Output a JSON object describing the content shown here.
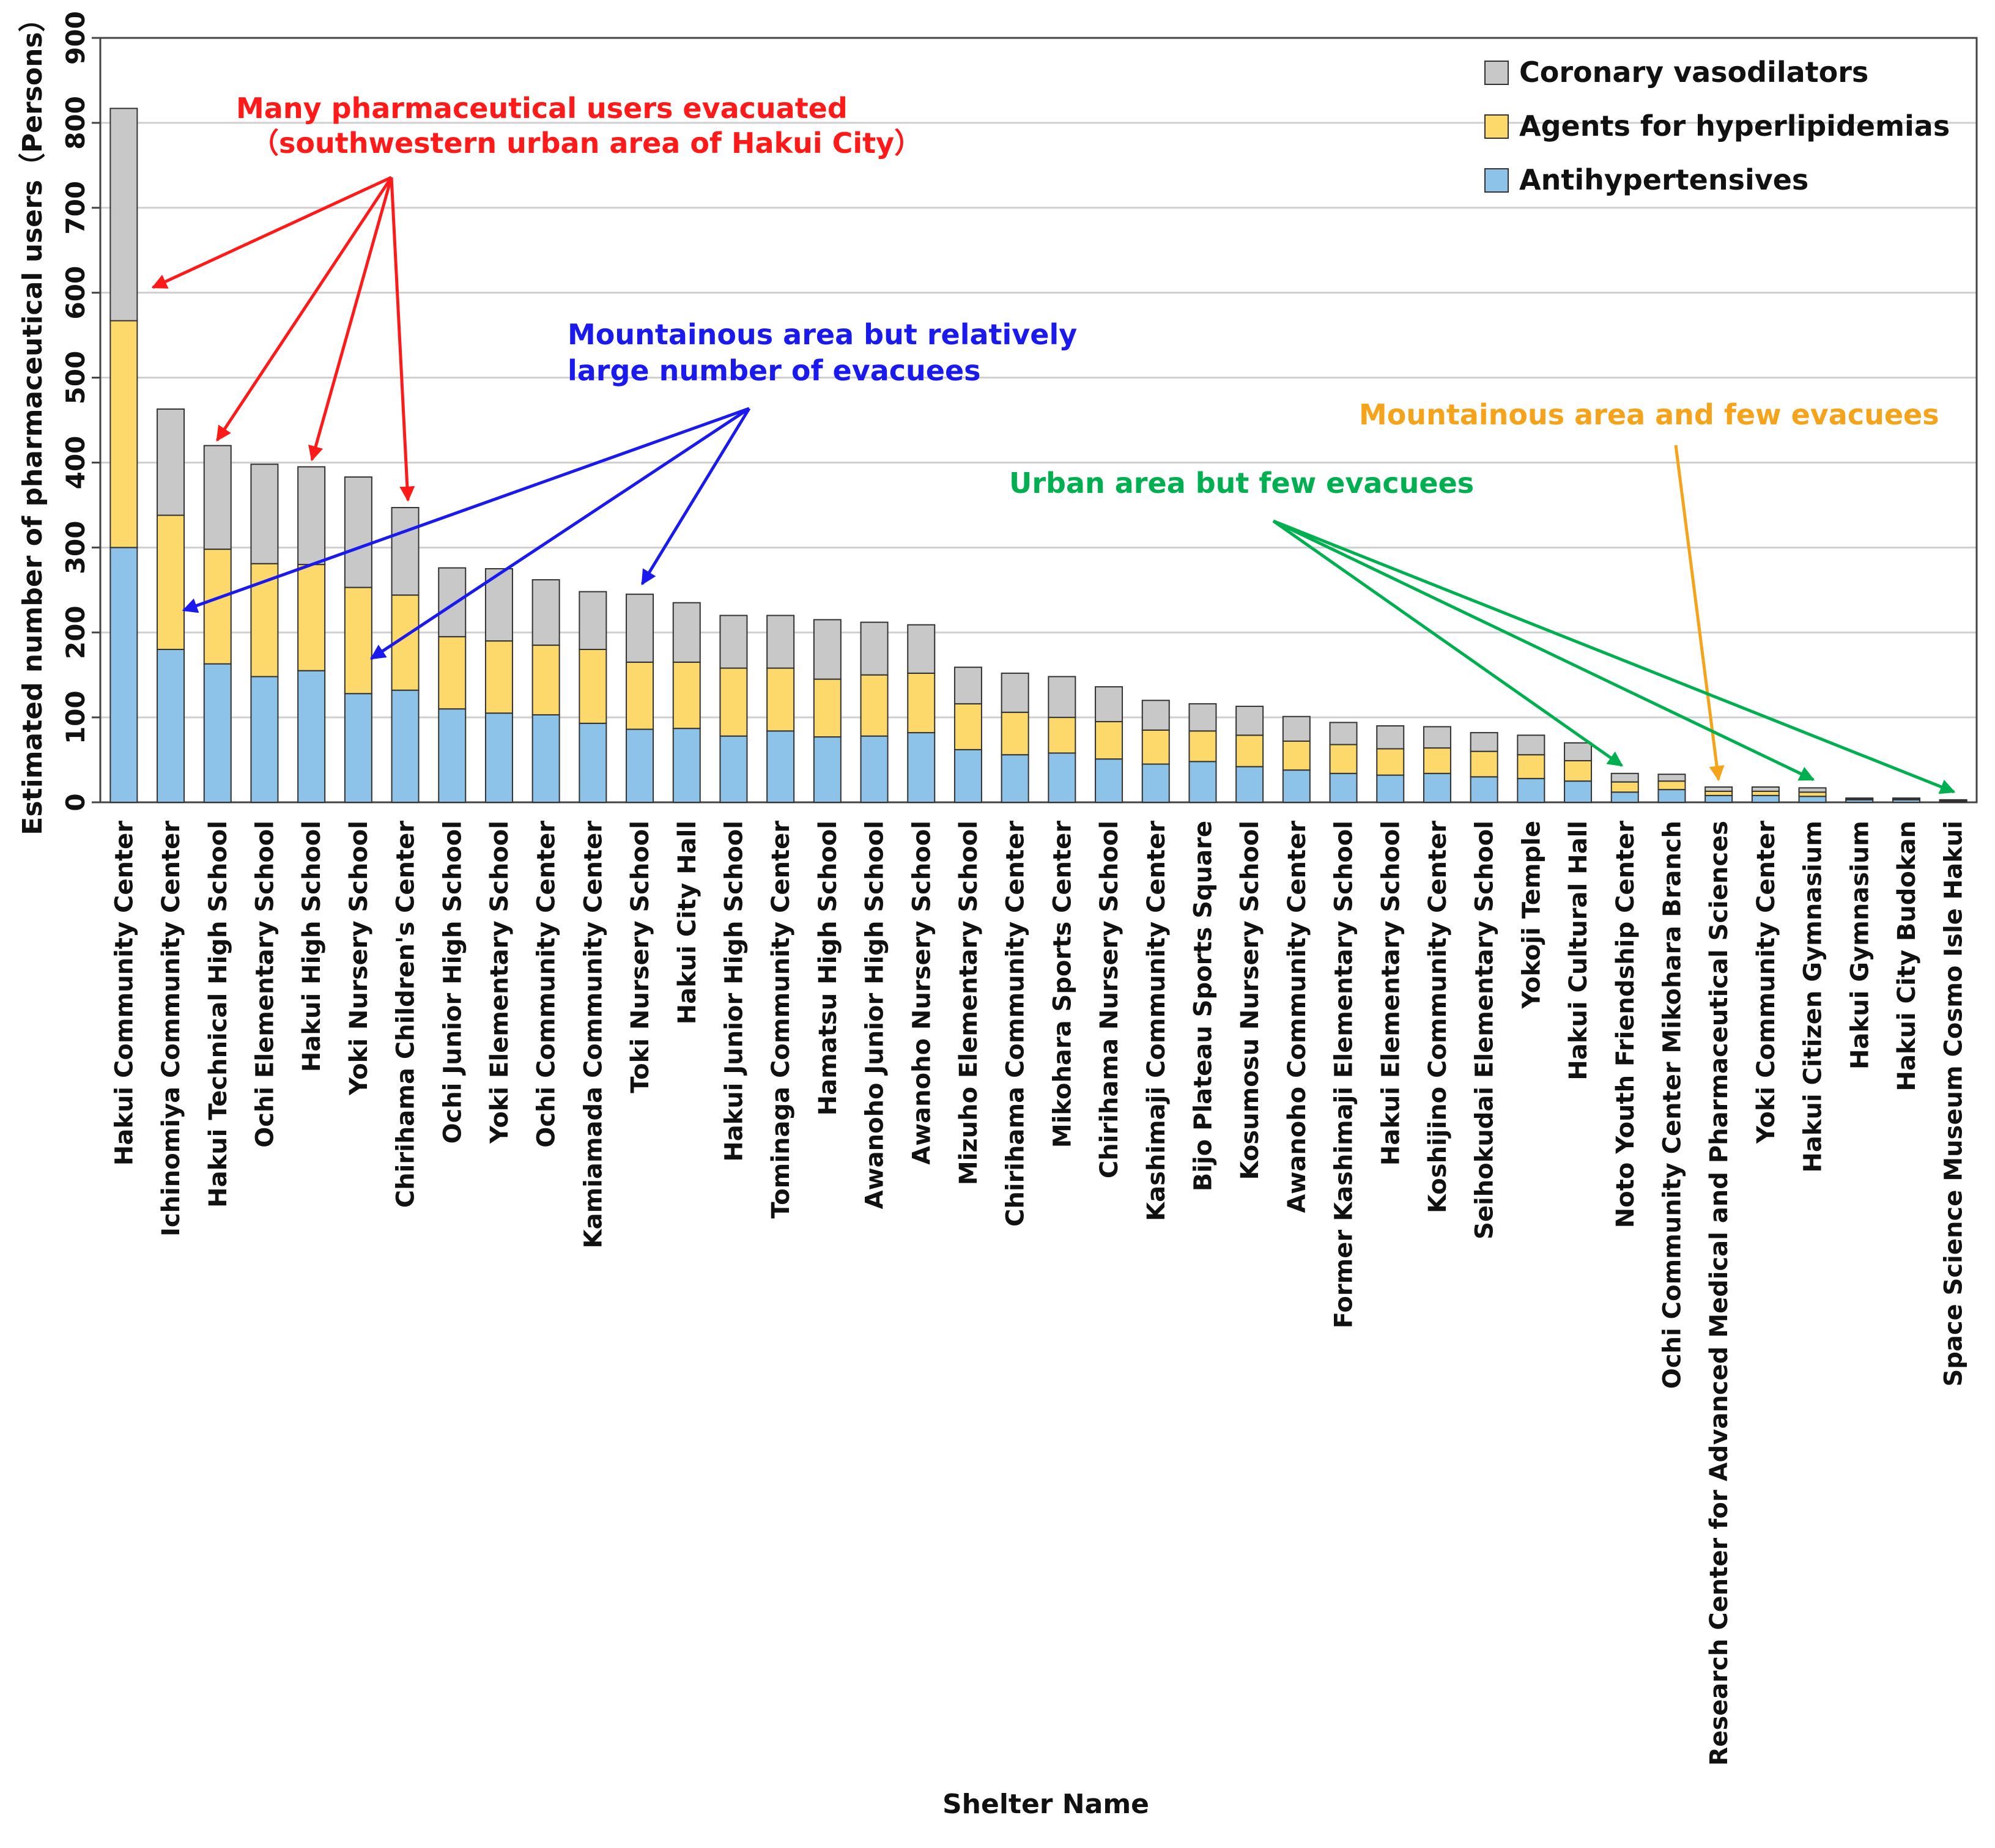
{
  "chart_data": {
    "type": "bar",
    "stacked": true,
    "title": "",
    "xlabel": "Shelter Name",
    "ylabel": "Estimated number of pharmaceutical users（Persons）",
    "ylim": [
      0,
      900
    ],
    "yticks": [
      "0",
      "100",
      "200",
      "300",
      "400",
      "500",
      "600",
      "700",
      "800",
      "900"
    ],
    "grid": "horizontal",
    "legend_position": "top-right",
    "categories": [
      "Hakui Community Center",
      "Ichinomiya Community Center",
      "Hakui Technical High School",
      "Ochi Elementary School",
      "Hakui High School",
      "Yoki Nursery School",
      "Chirihama Children's Center",
      "Ochi Junior High School",
      "Yoki Elementary School",
      "Ochi Community Center",
      "Kamiamada Community Center",
      "Toki Nursery School",
      "Hakui City Hall",
      "Hakui Junior High School",
      "Tominaga Community Center",
      "Hamatsu High School",
      "Awanoho Junior High School",
      "Awanoho Nursery School",
      "Mizuho Elementary School",
      "Chirihama Community Center",
      "Mikohara Sports Center",
      "Chirihama Nursery School",
      "Kashimaji Community Center",
      "Bijo Plateau Sports Square",
      "Kosumosu Nursery School",
      "Awanoho Community Center",
      "Former Kashimaji Elementary School",
      "Hakui Elementary School",
      "Koshijino Community Center",
      "Seihokudai Elementary School",
      "Yokoji Temple",
      "Hakui Cultural Hall",
      "Noto Youth Friendship Center",
      "Ochi Community Center Mikohara Branch",
      "Research Center for Advanced Medical and Pharmaceutical Sciences",
      "Yoki Community Center",
      "Hakui Citizen Gymnasium",
      "Hakui Gymnasium",
      "Hakui City Budokan",
      "Space Science Museum Cosmo Isle Hakui"
    ],
    "series": [
      {
        "name": "Antihypertensives",
        "color": "#8dc3e8",
        "values": [
          300,
          180,
          163,
          148,
          155,
          128,
          132,
          110,
          105,
          103,
          93,
          86,
          87,
          78,
          84,
          77,
          78,
          82,
          62,
          56,
          58,
          51,
          45,
          48,
          42,
          38,
          34,
          32,
          34,
          30,
          28,
          25,
          12,
          15,
          8,
          8,
          7,
          3,
          3,
          1
        ]
      },
      {
        "name": "Agents for hyperlipidemias",
        "color": "#fcd96a",
        "values": [
          267,
          158,
          135,
          133,
          125,
          125,
          112,
          85,
          85,
          82,
          87,
          79,
          78,
          80,
          74,
          68,
          72,
          70,
          54,
          50,
          42,
          44,
          40,
          36,
          37,
          34,
          34,
          31,
          30,
          30,
          28,
          24,
          12,
          10,
          5,
          5,
          5,
          1,
          1,
          1
        ]
      },
      {
        "name": "Coronary vasodilators",
        "color": "#c8c8c8",
        "values": [
          250,
          125,
          122,
          117,
          115,
          130,
          103,
          81,
          85,
          77,
          68,
          80,
          70,
          62,
          62,
          70,
          62,
          57,
          43,
          46,
          48,
          41,
          35,
          32,
          34,
          29,
          26,
          27,
          25,
          22,
          23,
          21,
          10,
          8,
          5,
          5,
          5,
          1,
          1,
          1
        ]
      }
    ],
    "annotations": [
      {
        "lines": [
          "Many pharmaceutical users evacuated",
          "（southwestern urban area of Hakui City）"
        ],
        "color": "#ff1a1a",
        "targets": [
          0,
          2,
          4,
          6
        ]
      },
      {
        "lines": [
          "Mountainous area but relatively",
          "large number of evacuees"
        ],
        "color": "#1a1aee",
        "targets": [
          1,
          5,
          11
        ]
      },
      {
        "lines": [
          "Mountainous area and few evacuees"
        ],
        "color": "#f5a31a",
        "targets": [
          34
        ]
      },
      {
        "lines": [
          "Urban area but few evacuees"
        ],
        "color": "#00b050",
        "targets": [
          32,
          36,
          39
        ]
      }
    ]
  }
}
